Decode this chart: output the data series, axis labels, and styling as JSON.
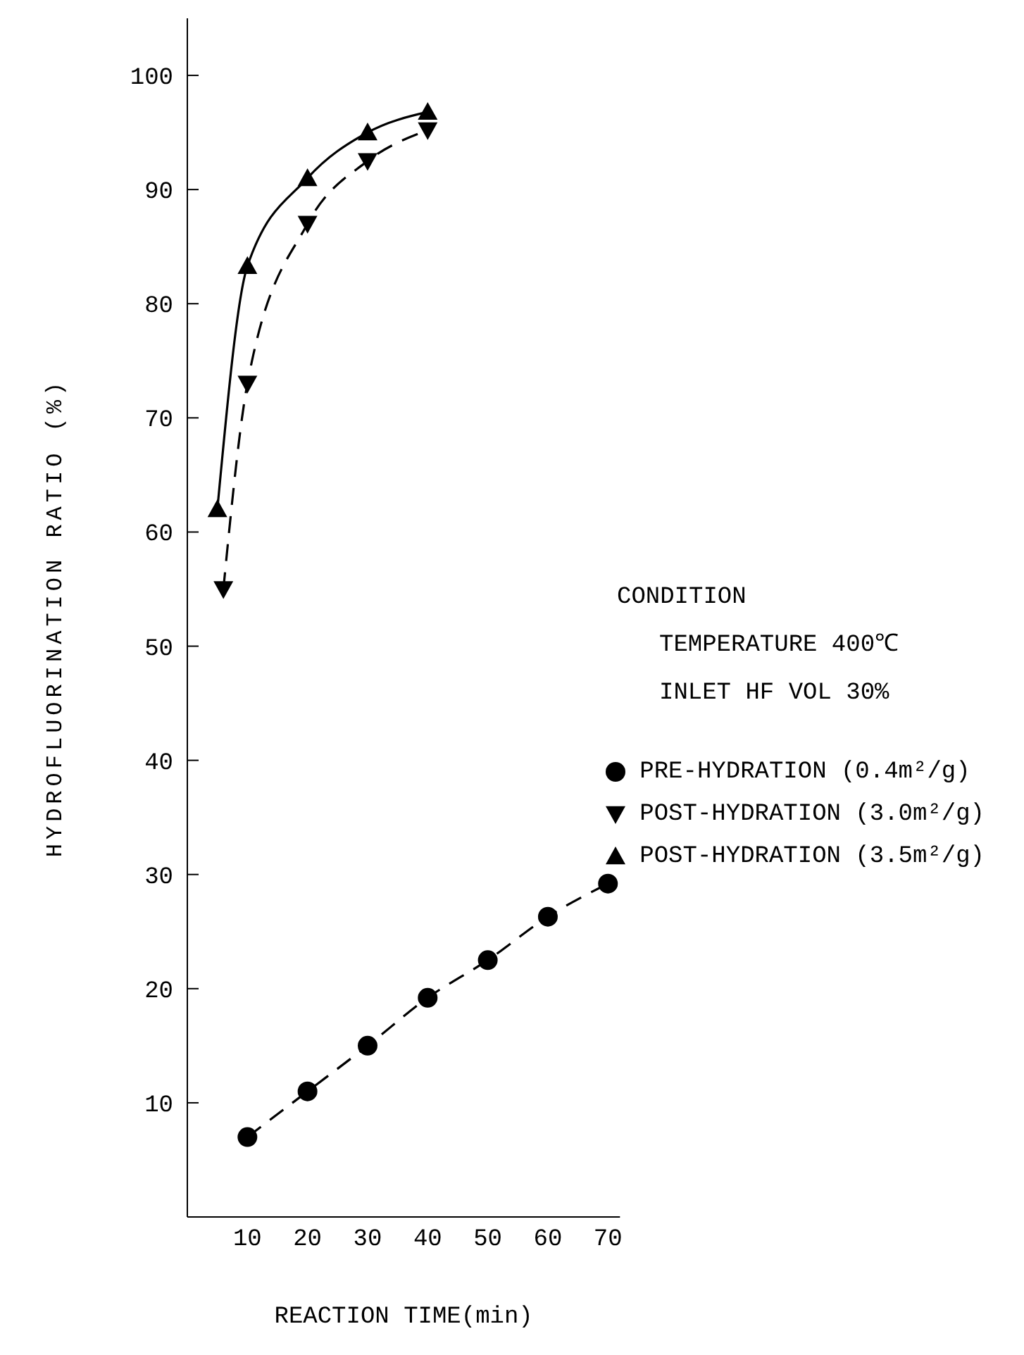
{
  "chart_data": {
    "type": "line",
    "xlabel": "REACTION TIME(min)",
    "ylabel": "HYDROFLUORINATION RATIO (%)",
    "xlim": [
      0,
      72
    ],
    "xticks": [
      10,
      20,
      30,
      40,
      50,
      60,
      70
    ],
    "ylim": [
      0,
      105
    ],
    "yticks": [
      10,
      20,
      30,
      40,
      50,
      60,
      70,
      80,
      90,
      100
    ],
    "grid": false,
    "legend": "right",
    "annotations": [
      "CONDITION",
      "TEMPERATURE 400℃",
      "INLET HF VOL 30%"
    ],
    "series": [
      {
        "name": "PRE-HYDRATION (0.4m²/g)",
        "color": "#000000",
        "marker": "circle",
        "line_style": "dashed",
        "x": [
          10,
          20,
          30,
          40,
          50,
          60,
          70
        ],
        "values": [
          7,
          11,
          15,
          19.2,
          22.5,
          26.3,
          29.2
        ]
      },
      {
        "name": "POST-HYDRATION (3.0m²/g)",
        "color": "#000000",
        "marker": "triangle-down",
        "line_style": "dashed",
        "x": [
          6,
          10,
          20,
          30,
          40
        ],
        "values": [
          55,
          73,
          87,
          92.5,
          95.2
        ]
      },
      {
        "name": "POST-HYDRATION (3.5m²/g)",
        "color": "#000000",
        "marker": "triangle",
        "line_style": "solid",
        "x": [
          5,
          10,
          20,
          30,
          40
        ],
        "values": [
          62,
          83.3,
          91,
          95,
          96.8
        ]
      }
    ]
  }
}
